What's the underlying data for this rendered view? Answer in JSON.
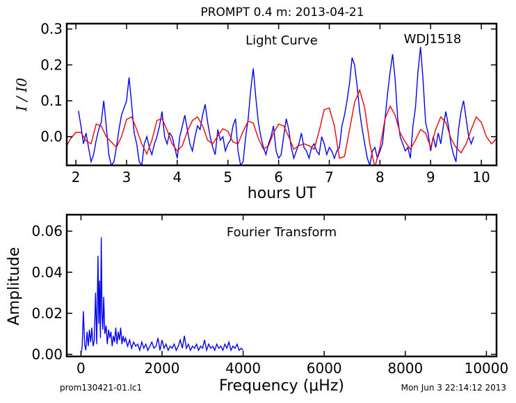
{
  "header": {
    "title": "PROMPT 0.4 m:  2013-04-21"
  },
  "footer": {
    "filename": "prom130421-01.lc1",
    "timestamp": "Mon Jun  3 22:14:12 2013"
  },
  "colors": {
    "data_line": "#0000ee",
    "model_line": "#ee0000",
    "axes": "#000000"
  },
  "chart_data": [
    {
      "type": "line",
      "title": "Light Curve",
      "annotation": "WDJ1518",
      "xlabel": "hours UT",
      "ylabel": "I / I0",
      "xlim": [
        1.82,
        10.3
      ],
      "ylim": [
        -0.08,
        0.315
      ],
      "x_ticks": [
        2,
        3,
        4,
        5,
        6,
        7,
        8,
        9,
        10
      ],
      "x_tick_labels": [
        "2",
        "3",
        "4",
        "5",
        "6",
        "7",
        "8",
        "9",
        "10"
      ],
      "y_ticks": [
        0.0,
        0.1,
        0.2,
        0.3
      ],
      "y_tick_labels": [
        "0.0",
        "0.1",
        "0.2",
        "0.3"
      ],
      "grid": false,
      "series": [
        {
          "color": "#0000ee",
          "x": [
            2.05,
            2.1,
            2.15,
            2.2,
            2.25,
            2.3,
            2.35,
            2.4,
            2.45,
            2.5,
            2.55,
            2.6,
            2.65,
            2.7,
            2.75,
            2.8,
            2.85,
            2.9,
            2.95,
            3.0,
            3.05,
            3.1,
            3.15,
            3.2,
            3.25,
            3.3,
            3.35,
            3.4,
            3.45,
            3.5,
            3.55,
            3.6,
            3.65,
            3.7,
            3.75,
            3.8,
            3.85,
            3.9,
            3.95,
            4.0,
            4.05,
            4.1,
            4.15,
            4.2,
            4.25,
            4.3,
            4.35,
            4.4,
            4.45,
            4.5,
            4.55,
            4.6,
            4.65,
            4.7,
            4.75,
            4.8,
            4.85,
            4.9,
            4.95,
            5.0,
            5.05,
            5.1,
            5.15,
            5.2,
            5.25,
            5.3,
            5.35,
            5.4,
            5.45,
            5.5,
            5.55,
            5.6,
            5.65,
            5.7,
            5.75,
            5.8,
            5.85,
            5.9,
            5.95,
            6.0,
            6.05,
            6.1,
            6.15,
            6.2,
            6.25,
            6.3,
            6.35,
            6.4,
            6.45,
            6.5,
            6.55,
            6.6,
            6.65,
            6.7,
            6.75,
            6.8,
            6.85,
            6.9,
            6.95,
            7.0,
            7.05,
            7.1,
            7.15,
            7.2,
            7.25,
            7.3,
            7.35,
            7.4,
            7.45,
            7.5,
            7.55,
            7.6,
            7.65,
            7.7,
            7.75,
            7.8,
            7.85,
            7.9,
            7.95,
            8.0,
            8.05,
            8.1,
            8.15,
            8.2,
            8.25,
            8.3,
            8.35,
            8.4,
            8.45,
            8.5,
            8.55,
            8.6,
            8.65,
            8.7,
            8.75,
            8.8,
            8.85,
            8.9,
            8.95,
            9.0,
            9.05,
            9.1,
            9.15,
            9.2,
            9.25,
            9.3,
            9.35,
            9.4,
            9.45,
            9.5,
            9.55,
            9.6,
            9.65,
            9.7,
            9.75,
            9.8,
            9.85
          ],
          "values": [
            0.072,
            0.03,
            -0.02,
            0.01,
            -0.03,
            -0.07,
            -0.05,
            -0.01,
            0.02,
            0.04,
            0.1,
            0.03,
            -0.05,
            -0.08,
            -0.07,
            -0.03,
            0.02,
            0.06,
            0.08,
            0.1,
            0.165,
            0.09,
            0.01,
            -0.02,
            -0.07,
            -0.08,
            -0.02,
            0.0,
            -0.03,
            -0.05,
            -0.02,
            0.0,
            0.03,
            0.07,
            0.0,
            -0.02,
            0.01,
            0.0,
            -0.03,
            -0.06,
            0.0,
            0.03,
            0.06,
            0.02,
            -0.02,
            -0.04,
            0.0,
            0.03,
            0.02,
            0.06,
            0.09,
            0.04,
            0.0,
            -0.03,
            -0.05,
            0.02,
            -0.01,
            0.0,
            -0.04,
            -0.02,
            -0.01,
            0.03,
            0.05,
            -0.04,
            -0.08,
            -0.07,
            0.0,
            0.05,
            0.13,
            0.19,
            0.11,
            0.04,
            0.0,
            -0.03,
            -0.05,
            -0.02,
            0.0,
            0.03,
            -0.04,
            -0.06,
            -0.05,
            0.0,
            0.05,
            0.02,
            -0.03,
            -0.06,
            -0.04,
            -0.02,
            0.01,
            -0.03,
            -0.04,
            -0.06,
            -0.03,
            -0.02,
            -0.04,
            -0.05,
            0.0,
            -0.02,
            -0.05,
            -0.03,
            -0.04,
            -0.06,
            -0.04,
            -0.03,
            0.03,
            0.06,
            0.1,
            0.15,
            0.22,
            0.2,
            0.14,
            0.07,
            0.02,
            -0.02,
            -0.06,
            -0.08,
            -0.04,
            -0.03,
            -0.06,
            -0.04,
            -0.02,
            0.05,
            0.12,
            0.18,
            0.23,
            0.16,
            0.05,
            0.0,
            -0.02,
            -0.04,
            -0.03,
            -0.06,
            0.03,
            0.08,
            0.18,
            0.25,
            0.16,
            0.04,
            0.01,
            -0.04,
            0.0,
            -0.03,
            0.01,
            -0.02,
            0.03,
            0.07,
            0.03,
            -0.02,
            -0.05,
            -0.07,
            0.02,
            0.07,
            0.1,
            0.05,
            0.0,
            -0.02,
            0.0
          ]
        },
        {
          "color": "#ee0000",
          "x": [
            1.82,
            1.9,
            2.0,
            2.1,
            2.2,
            2.3,
            2.4,
            2.5,
            2.6,
            2.7,
            2.8,
            2.9,
            3.0,
            3.1,
            3.2,
            3.3,
            3.4,
            3.5,
            3.6,
            3.7,
            3.8,
            3.9,
            4.0,
            4.1,
            4.2,
            4.3,
            4.4,
            4.5,
            4.6,
            4.7,
            4.8,
            4.9,
            5.0,
            5.1,
            5.2,
            5.3,
            5.4,
            5.5,
            5.6,
            5.7,
            5.8,
            5.9,
            6.0,
            6.1,
            6.2,
            6.3,
            6.4,
            6.5,
            6.6,
            6.7,
            6.8,
            6.9,
            7.0,
            7.1,
            7.2,
            7.3,
            7.4,
            7.5,
            7.6,
            7.7,
            7.8,
            7.9,
            8.0,
            8.1,
            8.2,
            8.3,
            8.4,
            8.5,
            8.6,
            8.7,
            8.8,
            8.9,
            9.0,
            9.1,
            9.2,
            9.3,
            9.4,
            9.5,
            9.6,
            9.7,
            9.8,
            9.9,
            10.0,
            10.1,
            10.2,
            10.3
          ],
          "values": [
            -0.025,
            -0.005,
            0.012,
            0.012,
            -0.012,
            -0.02,
            0.035,
            0.03,
            0.0,
            -0.015,
            -0.03,
            0.0,
            0.048,
            0.055,
            0.02,
            -0.02,
            -0.048,
            -0.01,
            0.045,
            0.05,
            0.018,
            -0.02,
            -0.04,
            -0.025,
            0.015,
            0.045,
            0.055,
            0.03,
            -0.01,
            -0.02,
            0.002,
            0.022,
            0.015,
            -0.015,
            -0.02,
            0.015,
            0.043,
            0.038,
            -0.005,
            -0.035,
            -0.025,
            0.01,
            0.035,
            0.03,
            0.0,
            -0.035,
            -0.025,
            -0.02,
            -0.025,
            -0.035,
            0.015,
            0.075,
            0.08,
            0.03,
            -0.06,
            -0.055,
            0.02,
            0.095,
            0.13,
            0.08,
            -0.02,
            -0.085,
            -0.03,
            0.05,
            0.085,
            0.06,
            0.01,
            -0.015,
            -0.035,
            -0.01,
            0.02,
            0.01,
            -0.03,
            0.02,
            0.055,
            0.04,
            -0.005,
            -0.03,
            -0.045,
            -0.02,
            0.02,
            0.055,
            0.04,
            0.0,
            -0.02,
            -0.005
          ]
        }
      ]
    },
    {
      "type": "line",
      "title": "Fourier Transform",
      "xlabel": "Frequency (μHz)",
      "ylabel": "Amplitude",
      "xlim": [
        -350,
        10250
      ],
      "ylim": [
        -0.001,
        0.068
      ],
      "x_ticks": [
        0,
        2000,
        4000,
        6000,
        8000,
        10000
      ],
      "x_tick_labels": [
        "0",
        "2000",
        "4000",
        "6000",
        "8000",
        "10000"
      ],
      "y_ticks": [
        0.0,
        0.02,
        0.04,
        0.06
      ],
      "y_tick_labels": [
        "0.00",
        "0.02",
        "0.04",
        "0.06"
      ],
      "grid": false,
      "series": [
        {
          "color": "#0000ee",
          "x": [
            0,
            30,
            60,
            90,
            120,
            150,
            180,
            210,
            240,
            270,
            300,
            330,
            360,
            390,
            420,
            440,
            460,
            480,
            500,
            520,
            540,
            560,
            590,
            620,
            650,
            680,
            710,
            740,
            770,
            800,
            830,
            860,
            890,
            920,
            950,
            980,
            1010,
            1040,
            1070,
            1100,
            1150,
            1200,
            1250,
            1300,
            1350,
            1400,
            1450,
            1500,
            1550,
            1600,
            1650,
            1700,
            1750,
            1800,
            1850,
            1900,
            1950,
            2000,
            2050,
            2100,
            2150,
            2200,
            2250,
            2300,
            2350,
            2400,
            2450,
            2500,
            2550,
            2600,
            2650,
            2700,
            2750,
            2800,
            2850,
            2900,
            2950,
            3000,
            3050,
            3100,
            3150,
            3200,
            3250,
            3300,
            3350,
            3400,
            3450,
            3500,
            3550,
            3600,
            3650,
            3700,
            3750,
            3800,
            3850,
            3900,
            3950,
            4000
          ],
          "values": [
            0.0,
            0.004,
            0.021,
            0.005,
            0.002,
            0.011,
            0.004,
            0.012,
            0.006,
            0.013,
            0.004,
            0.007,
            0.03,
            0.005,
            0.048,
            0.015,
            0.036,
            0.008,
            0.057,
            0.02,
            0.012,
            0.028,
            0.01,
            0.014,
            0.005,
            0.012,
            0.008,
            0.011,
            0.004,
            0.009,
            0.006,
            0.013,
            0.005,
            0.011,
            0.007,
            0.013,
            0.005,
            0.009,
            0.006,
            0.008,
            0.004,
            0.007,
            0.003,
            0.006,
            0.004,
            0.005,
            0.002,
            0.006,
            0.003,
            0.005,
            0.002,
            0.004,
            0.006,
            0.003,
            0.004,
            0.008,
            0.002,
            0.007,
            0.003,
            0.005,
            0.002,
            0.004,
            0.003,
            0.005,
            0.002,
            0.004,
            0.007,
            0.003,
            0.009,
            0.003,
            0.005,
            0.002,
            0.004,
            0.003,
            0.005,
            0.002,
            0.004,
            0.003,
            0.007,
            0.002,
            0.005,
            0.003,
            0.004,
            0.002,
            0.005,
            0.003,
            0.004,
            0.002,
            0.005,
            0.003,
            0.006,
            0.002,
            0.004,
            0.003,
            0.005,
            0.002,
            0.003,
            0.002
          ]
        }
      ]
    }
  ]
}
